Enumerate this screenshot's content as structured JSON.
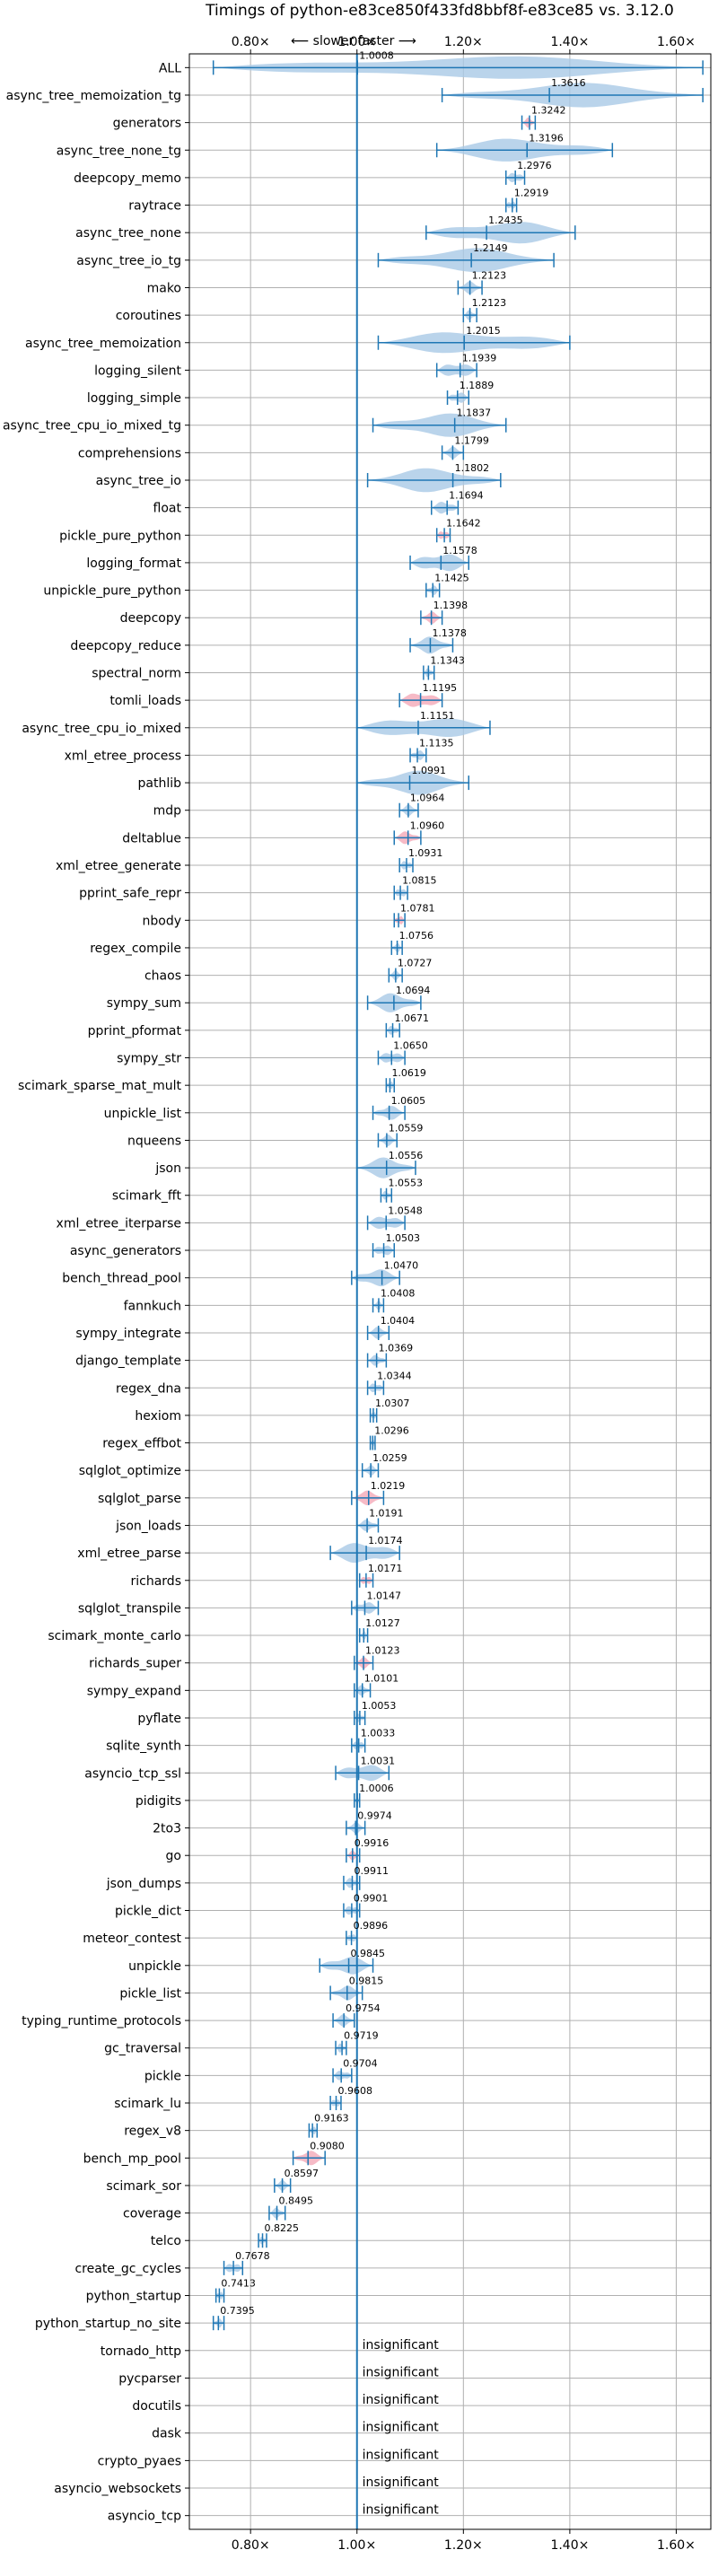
{
  "chart_data": {
    "type": "violin",
    "title": "Timings of python-e83ce850f433fd8bbf8f-e83ce85 vs. 3.12.0",
    "direction_label": "⟵ slower   faster ⟶",
    "xlim": [
      0.685,
      1.665
    ],
    "x_ticks": [
      0.8,
      1.0,
      1.2,
      1.4,
      1.6
    ],
    "x_tick_labels": [
      "0.80×",
      "1.00×",
      "1.20×",
      "1.40×",
      "1.60×"
    ],
    "reference_line": 1.0,
    "grid": true,
    "insignificant_text": "insignificant",
    "colors": {
      "violin": "#a9c9e6",
      "violin_highlight": "#f4a9b8",
      "line": "#1f77b4",
      "grid": "#b0b0b0"
    },
    "benchmarks": [
      {
        "name": "ALL",
        "value": 1.0008,
        "label": "1.0008",
        "min": 0.73,
        "max": 1.65
      },
      {
        "name": "async_tree_memoization_tg",
        "value": 1.3616,
        "label": "1.3616",
        "min": 1.16,
        "max": 1.65
      },
      {
        "name": "generators",
        "value": 1.3242,
        "label": "1.3242",
        "min": 1.31,
        "max": 1.335,
        "highlight": true
      },
      {
        "name": "async_tree_none_tg",
        "value": 1.3196,
        "label": "1.3196",
        "min": 1.15,
        "max": 1.48
      },
      {
        "name": "deepcopy_memo",
        "value": 1.2976,
        "label": "1.2976",
        "min": 1.28,
        "max": 1.315
      },
      {
        "name": "raytrace",
        "value": 1.2919,
        "label": "1.2919",
        "min": 1.28,
        "max": 1.3
      },
      {
        "name": "async_tree_none",
        "value": 1.2435,
        "label": "1.2435",
        "min": 1.13,
        "max": 1.41
      },
      {
        "name": "async_tree_io_tg",
        "value": 1.2149,
        "label": "1.2149",
        "min": 1.04,
        "max": 1.37
      },
      {
        "name": "mako",
        "value": 1.2123,
        "label": "1.2123",
        "min": 1.19,
        "max": 1.235
      },
      {
        "name": "coroutines",
        "value": 1.2123,
        "label": "1.2123",
        "min": 1.2,
        "max": 1.225
      },
      {
        "name": "async_tree_memoization",
        "value": 1.2015,
        "label": "1.2015",
        "min": 1.04,
        "max": 1.4
      },
      {
        "name": "logging_silent",
        "value": 1.1939,
        "label": "1.1939",
        "min": 1.15,
        "max": 1.225
      },
      {
        "name": "logging_simple",
        "value": 1.1889,
        "label": "1.1889",
        "min": 1.17,
        "max": 1.21
      },
      {
        "name": "async_tree_cpu_io_mixed_tg",
        "value": 1.1837,
        "label": "1.1837",
        "min": 1.03,
        "max": 1.28
      },
      {
        "name": "comprehensions",
        "value": 1.1799,
        "label": "1.1799",
        "min": 1.16,
        "max": 1.2
      },
      {
        "name": "async_tree_io",
        "value": 1.1802,
        "label": "1.1802",
        "min": 1.02,
        "max": 1.27
      },
      {
        "name": "float",
        "value": 1.1694,
        "label": "1.1694",
        "min": 1.14,
        "max": 1.19
      },
      {
        "name": "pickle_pure_python",
        "value": 1.1642,
        "label": "1.1642",
        "min": 1.15,
        "max": 1.175,
        "highlight": true
      },
      {
        "name": "logging_format",
        "value": 1.1578,
        "label": "1.1578",
        "min": 1.1,
        "max": 1.21
      },
      {
        "name": "unpickle_pure_python",
        "value": 1.1425,
        "label": "1.1425",
        "min": 1.13,
        "max": 1.155
      },
      {
        "name": "deepcopy",
        "value": 1.1398,
        "label": "1.1398",
        "min": 1.12,
        "max": 1.16,
        "highlight": true
      },
      {
        "name": "deepcopy_reduce",
        "value": 1.1378,
        "label": "1.1378",
        "min": 1.1,
        "max": 1.18
      },
      {
        "name": "spectral_norm",
        "value": 1.1343,
        "label": "1.1343",
        "min": 1.125,
        "max": 1.145
      },
      {
        "name": "tomli_loads",
        "value": 1.1195,
        "label": "1.1195",
        "min": 1.08,
        "max": 1.16,
        "highlight": true
      },
      {
        "name": "async_tree_cpu_io_mixed",
        "value": 1.1151,
        "label": "1.1151",
        "min": 1.0,
        "max": 1.25
      },
      {
        "name": "xml_etree_process",
        "value": 1.1135,
        "label": "1.1135",
        "min": 1.1,
        "max": 1.13
      },
      {
        "name": "pathlib",
        "value": 1.0991,
        "label": "1.0991",
        "min": 1.0,
        "max": 1.21
      },
      {
        "name": "mdp",
        "value": 1.0964,
        "label": "1.0964",
        "min": 1.08,
        "max": 1.115
      },
      {
        "name": "deltablue",
        "value": 1.096,
        "label": "1.0960",
        "min": 1.07,
        "max": 1.12,
        "highlight": true
      },
      {
        "name": "xml_etree_generate",
        "value": 1.0931,
        "label": "1.0931",
        "min": 1.08,
        "max": 1.105
      },
      {
        "name": "pprint_safe_repr",
        "value": 1.0815,
        "label": "1.0815",
        "min": 1.07,
        "max": 1.095
      },
      {
        "name": "nbody",
        "value": 1.0781,
        "label": "1.0781",
        "min": 1.07,
        "max": 1.09,
        "highlight": true
      },
      {
        "name": "regex_compile",
        "value": 1.0756,
        "label": "1.0756",
        "min": 1.065,
        "max": 1.085
      },
      {
        "name": "chaos",
        "value": 1.0727,
        "label": "1.0727",
        "min": 1.06,
        "max": 1.085
      },
      {
        "name": "sympy_sum",
        "value": 1.0694,
        "label": "1.0694",
        "min": 1.02,
        "max": 1.12
      },
      {
        "name": "pprint_pformat",
        "value": 1.0671,
        "label": "1.0671",
        "min": 1.055,
        "max": 1.08
      },
      {
        "name": "sympy_str",
        "value": 1.065,
        "label": "1.0650",
        "min": 1.04,
        "max": 1.09
      },
      {
        "name": "scimark_sparse_mat_mult",
        "value": 1.0619,
        "label": "1.0619",
        "min": 1.055,
        "max": 1.07
      },
      {
        "name": "unpickle_list",
        "value": 1.0605,
        "label": "1.0605",
        "min": 1.03,
        "max": 1.09
      },
      {
        "name": "nqueens",
        "value": 1.0559,
        "label": "1.0559",
        "min": 1.04,
        "max": 1.075
      },
      {
        "name": "json",
        "value": 1.0556,
        "label": "1.0556",
        "min": 1.0,
        "max": 1.11
      },
      {
        "name": "scimark_fft",
        "value": 1.0553,
        "label": "1.0553",
        "min": 1.045,
        "max": 1.065
      },
      {
        "name": "xml_etree_iterparse",
        "value": 1.0548,
        "label": "1.0548",
        "min": 1.02,
        "max": 1.09
      },
      {
        "name": "async_generators",
        "value": 1.0503,
        "label": "1.0503",
        "min": 1.03,
        "max": 1.07
      },
      {
        "name": "bench_thread_pool",
        "value": 1.047,
        "label": "1.0470",
        "min": 0.99,
        "max": 1.08
      },
      {
        "name": "fannkuch",
        "value": 1.0408,
        "label": "1.0408",
        "min": 1.03,
        "max": 1.05
      },
      {
        "name": "sympy_integrate",
        "value": 1.0404,
        "label": "1.0404",
        "min": 1.02,
        "max": 1.06
      },
      {
        "name": "django_template",
        "value": 1.0369,
        "label": "1.0369",
        "min": 1.02,
        "max": 1.055
      },
      {
        "name": "regex_dna",
        "value": 1.0344,
        "label": "1.0344",
        "min": 1.02,
        "max": 1.05
      },
      {
        "name": "hexiom",
        "value": 1.0307,
        "label": "1.0307",
        "min": 1.025,
        "max": 1.037
      },
      {
        "name": "regex_effbot",
        "value": 1.0296,
        "label": "1.0296",
        "min": 1.025,
        "max": 1.034
      },
      {
        "name": "sqlglot_optimize",
        "value": 1.0259,
        "label": "1.0259",
        "min": 1.01,
        "max": 1.04
      },
      {
        "name": "sqlglot_parse",
        "value": 1.0219,
        "label": "1.0219",
        "min": 0.99,
        "max": 1.05,
        "highlight": true
      },
      {
        "name": "json_loads",
        "value": 1.0191,
        "label": "1.0191",
        "min": 1.0,
        "max": 1.04
      },
      {
        "name": "xml_etree_parse",
        "value": 1.0174,
        "label": "1.0174",
        "min": 0.95,
        "max": 1.08
      },
      {
        "name": "richards",
        "value": 1.0171,
        "label": "1.0171",
        "min": 1.005,
        "max": 1.03,
        "highlight": true
      },
      {
        "name": "sqlglot_transpile",
        "value": 1.0147,
        "label": "1.0147",
        "min": 0.99,
        "max": 1.04
      },
      {
        "name": "scimark_monte_carlo",
        "value": 1.0127,
        "label": "1.0127",
        "min": 1.005,
        "max": 1.02
      },
      {
        "name": "richards_super",
        "value": 1.0123,
        "label": "1.0123",
        "min": 0.995,
        "max": 1.03,
        "highlight": true
      },
      {
        "name": "sympy_expand",
        "value": 1.0101,
        "label": "1.0101",
        "min": 0.995,
        "max": 1.025
      },
      {
        "name": "pyflate",
        "value": 1.0053,
        "label": "1.0053",
        "min": 0.995,
        "max": 1.015
      },
      {
        "name": "sqlite_synth",
        "value": 1.0033,
        "label": "1.0033",
        "min": 0.99,
        "max": 1.015
      },
      {
        "name": "asyncio_tcp_ssl",
        "value": 1.0031,
        "label": "1.0031",
        "min": 0.96,
        "max": 1.06
      },
      {
        "name": "pidigits",
        "value": 1.0006,
        "label": "1.0006",
        "min": 0.995,
        "max": 1.005
      },
      {
        "name": "2to3",
        "value": 0.9974,
        "label": "0.9974",
        "min": 0.98,
        "max": 1.015
      },
      {
        "name": "go",
        "value": 0.9916,
        "label": "0.9916",
        "min": 0.98,
        "max": 1.005,
        "highlight": true
      },
      {
        "name": "json_dumps",
        "value": 0.9911,
        "label": "0.9911",
        "min": 0.975,
        "max": 1.005
      },
      {
        "name": "pickle_dict",
        "value": 0.9901,
        "label": "0.9901",
        "min": 0.975,
        "max": 1.005
      },
      {
        "name": "meteor_contest",
        "value": 0.9896,
        "label": "0.9896",
        "min": 0.98,
        "max": 1.0
      },
      {
        "name": "unpickle",
        "value": 0.9845,
        "label": "0.9845",
        "min": 0.93,
        "max": 1.03
      },
      {
        "name": "pickle_list",
        "value": 0.9815,
        "label": "0.9815",
        "min": 0.95,
        "max": 1.01
      },
      {
        "name": "typing_runtime_protocols",
        "value": 0.9754,
        "label": "0.9754",
        "min": 0.955,
        "max": 0.995
      },
      {
        "name": "gc_traversal",
        "value": 0.9719,
        "label": "0.9719",
        "min": 0.96,
        "max": 0.98
      },
      {
        "name": "pickle",
        "value": 0.9704,
        "label": "0.9704",
        "min": 0.955,
        "max": 0.99
      },
      {
        "name": "scimark_lu",
        "value": 0.9608,
        "label": "0.9608",
        "min": 0.95,
        "max": 0.97
      },
      {
        "name": "regex_v8",
        "value": 0.9163,
        "label": "0.9163",
        "min": 0.91,
        "max": 0.925
      },
      {
        "name": "bench_mp_pool",
        "value": 0.908,
        "label": "0.9080",
        "min": 0.88,
        "max": 0.94,
        "highlight": true
      },
      {
        "name": "scimark_sor",
        "value": 0.8597,
        "label": "0.8597",
        "min": 0.845,
        "max": 0.875
      },
      {
        "name": "coverage",
        "value": 0.8495,
        "label": "0.8495",
        "min": 0.835,
        "max": 0.865
      },
      {
        "name": "telco",
        "value": 0.8225,
        "label": "0.8225",
        "min": 0.815,
        "max": 0.83
      },
      {
        "name": "create_gc_cycles",
        "value": 0.7678,
        "label": "0.7678",
        "min": 0.75,
        "max": 0.785
      },
      {
        "name": "python_startup",
        "value": 0.7413,
        "label": "0.7413",
        "min": 0.735,
        "max": 0.75
      },
      {
        "name": "python_startup_no_site",
        "value": 0.7395,
        "label": "0.7395",
        "min": 0.73,
        "max": 0.75
      },
      {
        "name": "tornado_http",
        "insignificant": true
      },
      {
        "name": "pycparser",
        "insignificant": true
      },
      {
        "name": "docutils",
        "insignificant": true
      },
      {
        "name": "dask",
        "insignificant": true
      },
      {
        "name": "crypto_pyaes",
        "insignificant": true
      },
      {
        "name": "asyncio_websockets",
        "insignificant": true
      },
      {
        "name": "asyncio_tcp",
        "insignificant": true
      }
    ]
  }
}
